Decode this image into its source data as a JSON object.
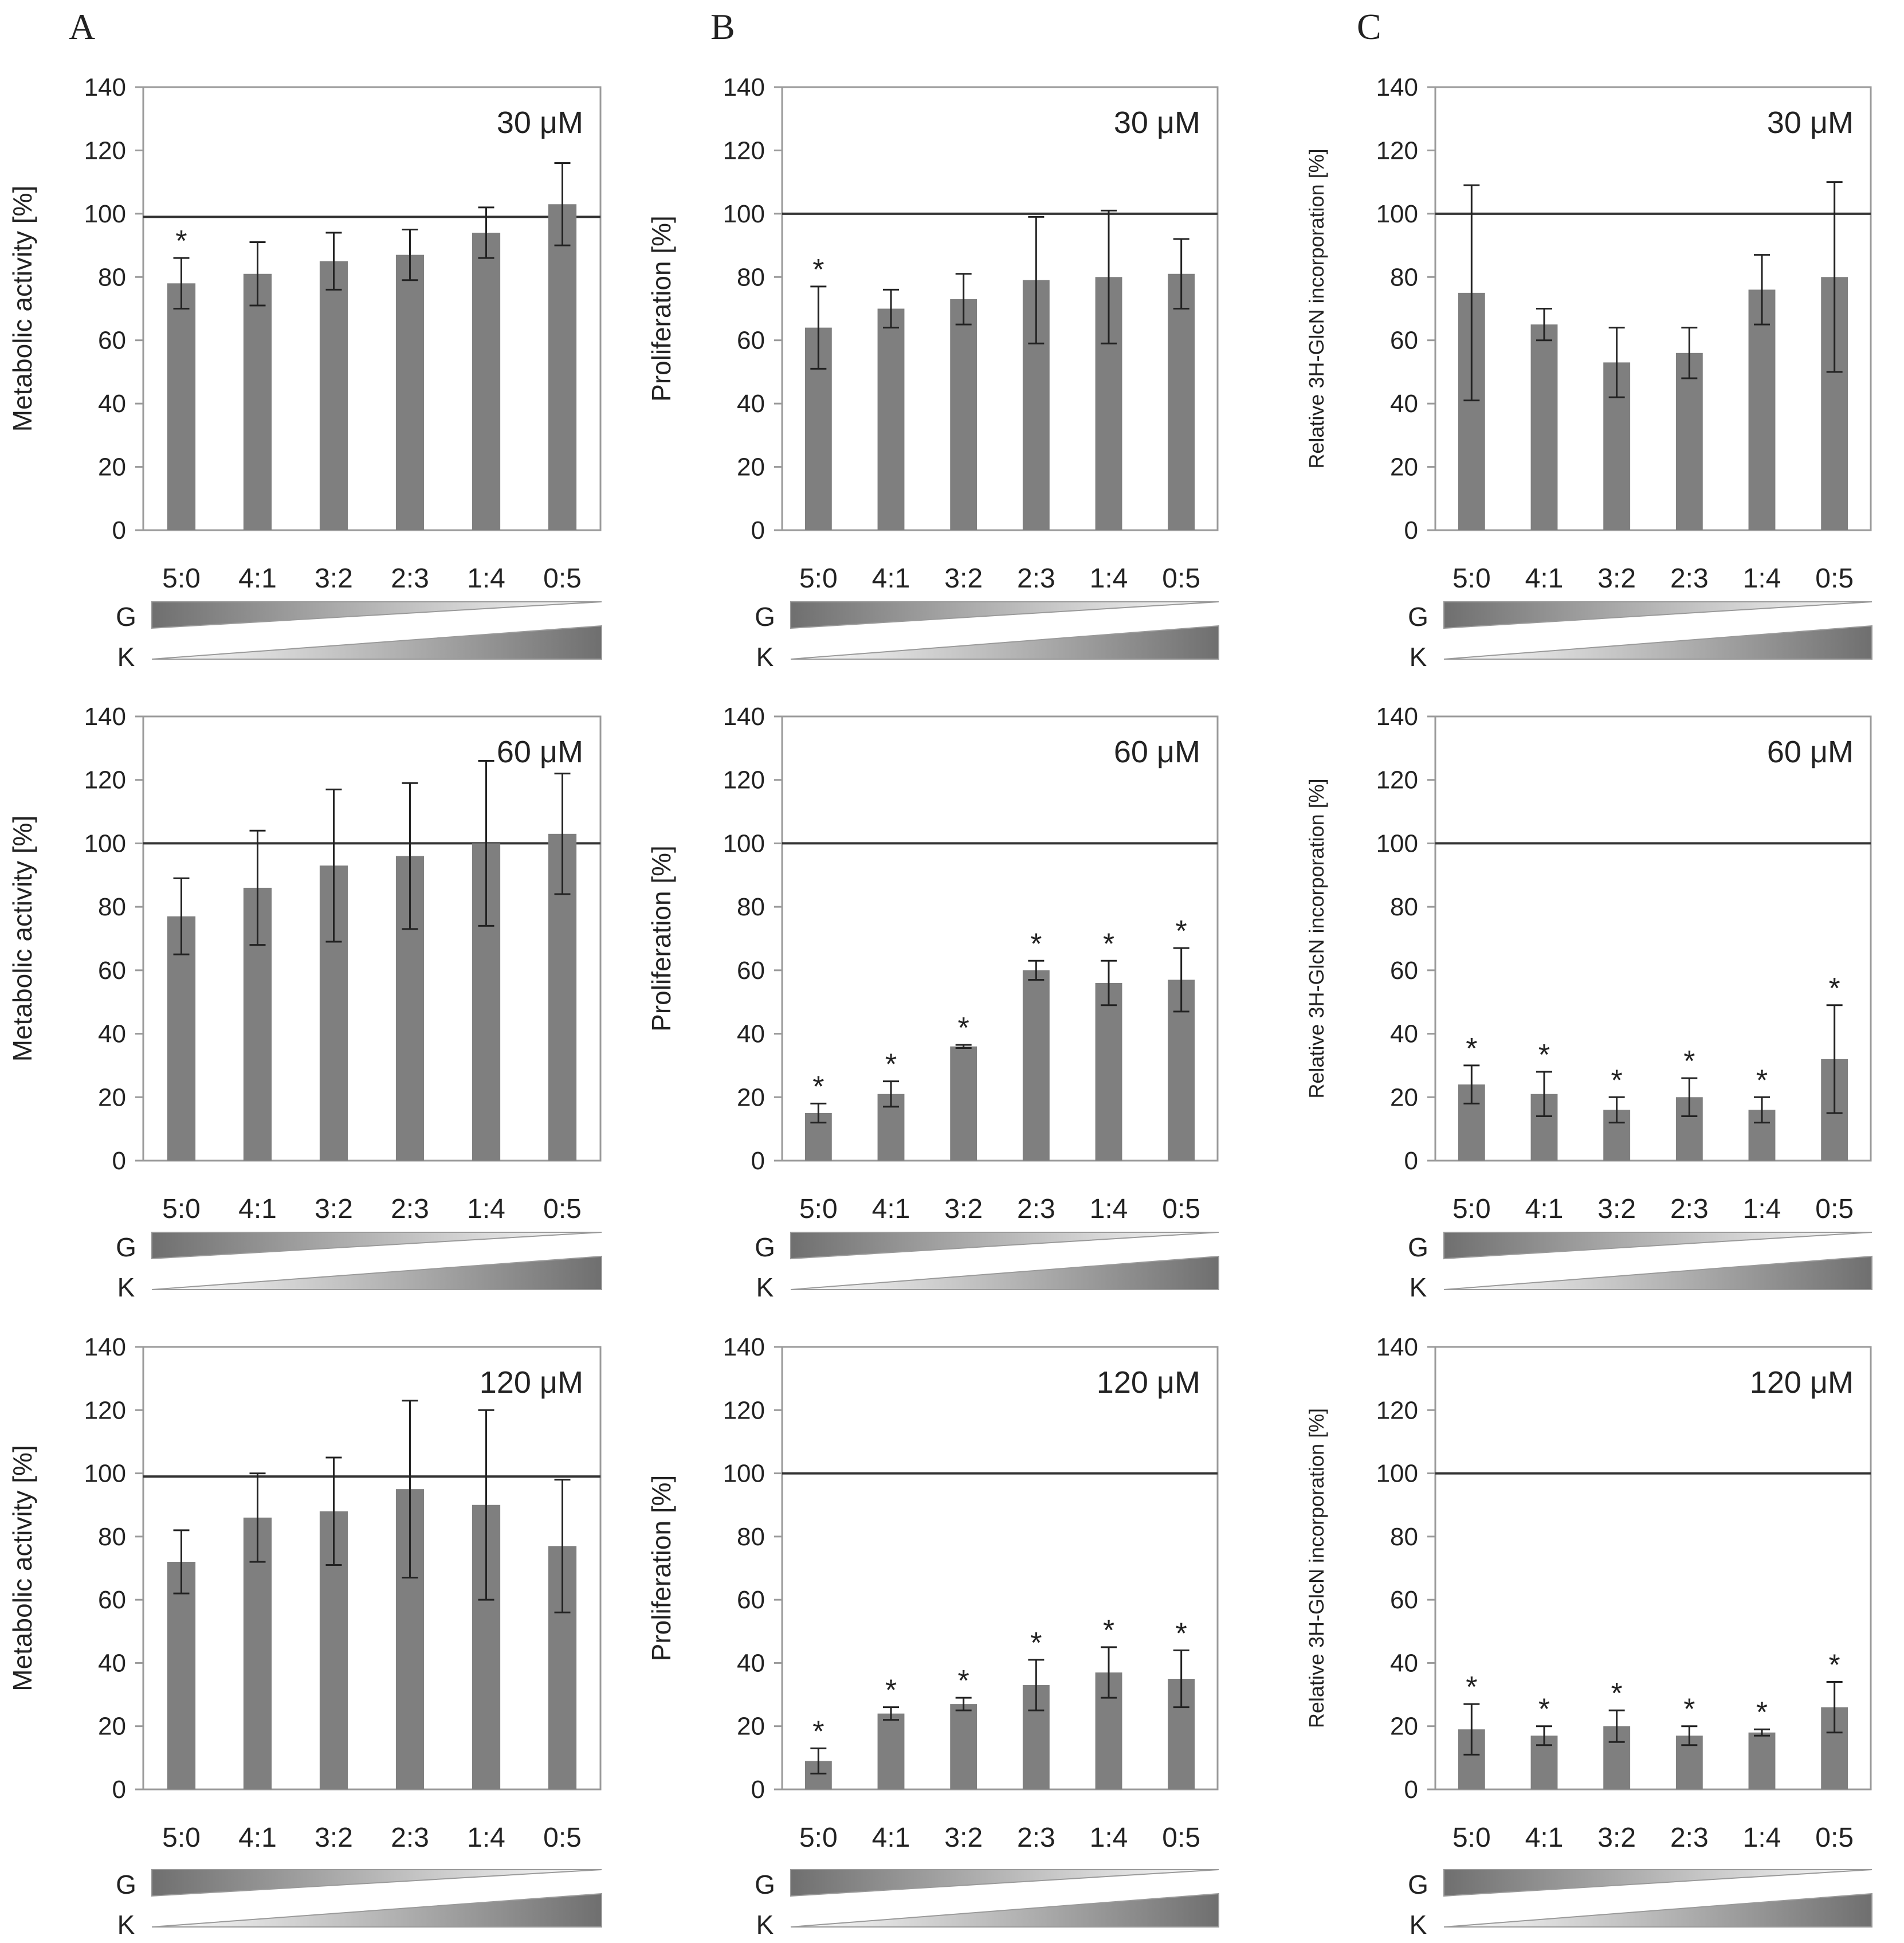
{
  "figure": {
    "panel_letters": [
      "A",
      "B",
      "C"
    ],
    "gradient_labels": {
      "g": "G",
      "k": "K"
    },
    "colors": {
      "bar": "#7f7f7f",
      "axis": "#9a9a9a",
      "error": "#222222",
      "reference_line": "#333333",
      "text": "#222222"
    }
  },
  "chart_data": [
    {
      "type": "bar",
      "panel": "A",
      "title": "30 μM",
      "ylabel": "Metabolic activity [%]",
      "categories": [
        "5:0",
        "4:1",
        "3:2",
        "2:3",
        "1:4",
        "0:5"
      ],
      "values": [
        78,
        81,
        85,
        87,
        94,
        103
      ],
      "errors": [
        8,
        10,
        9,
        8,
        8,
        13
      ],
      "significant": [
        true,
        false,
        false,
        false,
        false,
        false
      ],
      "reference_line": 99,
      "ylim": [
        0,
        140
      ],
      "yticks": [
        0,
        20,
        40,
        60,
        80,
        100,
        120,
        140
      ]
    },
    {
      "type": "bar",
      "panel": "B",
      "title": "30 μM",
      "ylabel": "Proliferation [%]",
      "categories": [
        "5:0",
        "4:1",
        "3:2",
        "2:3",
        "1:4",
        "0:5"
      ],
      "values": [
        64,
        70,
        73,
        79,
        80,
        81
      ],
      "errors": [
        13,
        6,
        8,
        20,
        21,
        11
      ],
      "significant": [
        true,
        false,
        false,
        false,
        false,
        false
      ],
      "reference_line": 100,
      "ylim": [
        0,
        140
      ],
      "yticks": [
        0,
        20,
        40,
        60,
        80,
        100,
        120,
        140
      ]
    },
    {
      "type": "bar",
      "panel": "C",
      "title": "30 μM",
      "ylabel": "Relative 3H-GlcN incorporation [%]",
      "categories": [
        "5:0",
        "4:1",
        "3:2",
        "2:3",
        "1:4",
        "0:5"
      ],
      "values": [
        75,
        65,
        53,
        56,
        76,
        80
      ],
      "errors": [
        34,
        5,
        11,
        8,
        11,
        30
      ],
      "significant": [
        false,
        false,
        false,
        false,
        false,
        false
      ],
      "reference_line": 100,
      "ylim": [
        0,
        140
      ],
      "yticks": [
        0,
        20,
        40,
        60,
        80,
        100,
        120,
        140
      ]
    },
    {
      "type": "bar",
      "panel": "A",
      "title": "60 μM",
      "ylabel": "Metabolic activity [%]",
      "categories": [
        "5:0",
        "4:1",
        "3:2",
        "2:3",
        "1:4",
        "0:5"
      ],
      "values": [
        77,
        86,
        93,
        96,
        100,
        103
      ],
      "errors": [
        12,
        18,
        24,
        23,
        26,
        19
      ],
      "significant": [
        false,
        false,
        false,
        false,
        false,
        false
      ],
      "reference_line": 100,
      "ylim": [
        0,
        140
      ],
      "yticks": [
        0,
        20,
        40,
        60,
        80,
        100,
        120,
        140
      ]
    },
    {
      "type": "bar",
      "panel": "B",
      "title": "60 μM",
      "ylabel": "Proliferation [%]",
      "categories": [
        "5:0",
        "4:1",
        "3:2",
        "2:3",
        "1:4",
        "0:5"
      ],
      "values": [
        15,
        21,
        36,
        60,
        56,
        57
      ],
      "errors": [
        3,
        4,
        0.5,
        3,
        7,
        10
      ],
      "significant": [
        true,
        true,
        true,
        true,
        true,
        true
      ],
      "reference_line": 100,
      "ylim": [
        0,
        140
      ],
      "yticks": [
        0,
        20,
        40,
        60,
        80,
        100,
        120,
        140
      ]
    },
    {
      "type": "bar",
      "panel": "C",
      "title": "60 μM",
      "ylabel": "Relative 3H-GlcN incorporation [%]",
      "categories": [
        "5:0",
        "4:1",
        "3:2",
        "2:3",
        "1:4",
        "0:5"
      ],
      "values": [
        24,
        21,
        16,
        20,
        16,
        32
      ],
      "errors": [
        6,
        7,
        4,
        6,
        4,
        17
      ],
      "significant": [
        true,
        true,
        true,
        true,
        true,
        true
      ],
      "reference_line": 100,
      "ylim": [
        0,
        140
      ],
      "yticks": [
        0,
        20,
        40,
        60,
        80,
        100,
        120,
        140
      ]
    },
    {
      "type": "bar",
      "panel": "A",
      "title": "120 μM",
      "ylabel": "Metabolic activity [%]",
      "categories": [
        "5:0",
        "4:1",
        "3:2",
        "2:3",
        "1:4",
        "0:5"
      ],
      "values": [
        72,
        86,
        88,
        95,
        90,
        77
      ],
      "errors": [
        10,
        14,
        17,
        28,
        30,
        21
      ],
      "significant": [
        false,
        false,
        false,
        false,
        false,
        false
      ],
      "reference_line": 99,
      "ylim": [
        0,
        140
      ],
      "yticks": [
        0,
        20,
        40,
        60,
        80,
        100,
        120,
        140
      ]
    },
    {
      "type": "bar",
      "panel": "B",
      "title": "120 μM",
      "ylabel": "Proliferation [%]",
      "categories": [
        "5:0",
        "4:1",
        "3:2",
        "2:3",
        "1:4",
        "0:5"
      ],
      "values": [
        9,
        24,
        27,
        33,
        37,
        35
      ],
      "errors": [
        4,
        2,
        2,
        8,
        8,
        9
      ],
      "significant": [
        true,
        true,
        true,
        true,
        true,
        true
      ],
      "reference_line": 100,
      "ylim": [
        0,
        140
      ],
      "yticks": [
        0,
        20,
        40,
        60,
        80,
        100,
        120,
        140
      ]
    },
    {
      "type": "bar",
      "panel": "C",
      "title": "120 μM",
      "ylabel": "Relative 3H-GlcN incorporation [%]",
      "categories": [
        "5:0",
        "4:1",
        "3:2",
        "2:3",
        "1:4",
        "0:5"
      ],
      "values": [
        19,
        17,
        20,
        17,
        18,
        26
      ],
      "errors": [
        8,
        3,
        5,
        3,
        1,
        8
      ],
      "significant": [
        true,
        true,
        true,
        true,
        true,
        true
      ],
      "reference_line": 100,
      "ylim": [
        0,
        140
      ],
      "yticks": [
        0,
        20,
        40,
        60,
        80,
        100,
        120,
        140
      ]
    }
  ]
}
